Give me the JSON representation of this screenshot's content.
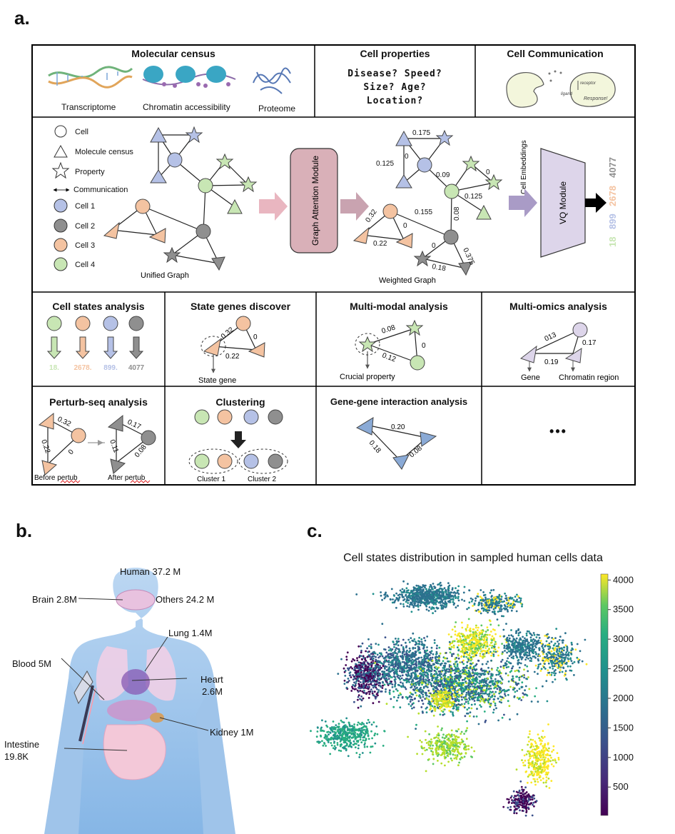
{
  "panels": {
    "a": "a.",
    "b": "b.",
    "c": "c."
  },
  "colors": {
    "cell1": "#b5c1e6",
    "cell2": "#8f8f8f",
    "cell3": "#f4c3a1",
    "cell4": "#c8e6b4",
    "gat": "#d9b0b8",
    "vq": "#ddd5ea"
  },
  "row1": {
    "molecular_census": {
      "title": "Molecular census",
      "items": [
        "Transcriptome",
        "Chromatin accessibility",
        "Proteome"
      ]
    },
    "cell_properties": {
      "title": "Cell properties",
      "lines": [
        "Disease?  Speed?",
        "Size?  Age?",
        "Location?"
      ]
    },
    "cell_communication": {
      "title": "Cell Communication",
      "sketch": {
        "ligand": "ligand",
        "receptor": "receptor",
        "response": "Response!"
      }
    }
  },
  "row2": {
    "legend": [
      "Cell",
      "Molecule census",
      "Property",
      "Communication",
      "Cell 1",
      "Cell 2",
      "Cell 3",
      "Cell 4"
    ],
    "unified_graph": "Unified Graph",
    "gat_module": "Graph Attention Module",
    "weighted_graph": "Weighted Graph",
    "weights": [
      "0.175",
      "0.125",
      "0",
      "0.09",
      "0",
      "0.125",
      "0.32",
      "0.155",
      "0.08",
      "0",
      "0.22",
      "0",
      "0.375",
      "0.18"
    ],
    "cell_embeddings": "Cell Embeddings",
    "vq_module": "VQ Module",
    "codes": [
      "18",
      "899",
      "2678",
      "4077"
    ]
  },
  "row3": {
    "cell_states": {
      "title": "Cell states analysis",
      "codes": [
        "18.",
        "2678.",
        "899.",
        "4077"
      ]
    },
    "state_genes": {
      "title": "State genes discover",
      "w": [
        "0.32",
        "0",
        "0.22"
      ],
      "label": "State gene"
    },
    "multi_modal": {
      "title": "Multi-modal analysis",
      "w": [
        "0.08",
        "0.12",
        "0"
      ],
      "label": "Crucial property"
    },
    "multi_omics": {
      "title": "Multi-omics analysis",
      "w": [
        "013",
        "0.17",
        "0.19"
      ],
      "gene": "Gene",
      "chromatin": "Chromatin region"
    }
  },
  "row4": {
    "perturb": {
      "title": "Perturb-seq analysis",
      "before_w": [
        "0.32",
        "0.22",
        "0"
      ],
      "after_w": [
        "0.17",
        "0.11",
        "0.08"
      ],
      "before": "Before pertub",
      "after": "After pertub"
    },
    "clustering": {
      "title": "Clustering",
      "c1": "Cluster 1",
      "c2": "Cluster 2"
    },
    "gene_gene": {
      "title": "Gene-gene interaction analysis",
      "w": [
        "0.20",
        "0.18",
        "0.08"
      ]
    },
    "more": "•••"
  },
  "body": {
    "human": "Human  37.2 M",
    "brain": "Brain 2.8M",
    "others": "Others 24.2 M",
    "lung": "Lung 1.4M",
    "blood": "Blood 5M",
    "heart": [
      "Heart",
      "2.6M"
    ],
    "kidney": "Kidney 1M",
    "intestine": [
      "Intestine",
      "19.8K"
    ]
  },
  "scatter": {
    "title": "Cell states distribution in sampled human cells data",
    "colorbar_ticks": [
      "4000",
      "3500",
      "3000",
      "2500",
      "2000",
      "1500",
      "1000",
      "500"
    ],
    "colorbar_range": [
      20,
      4100
    ]
  }
}
